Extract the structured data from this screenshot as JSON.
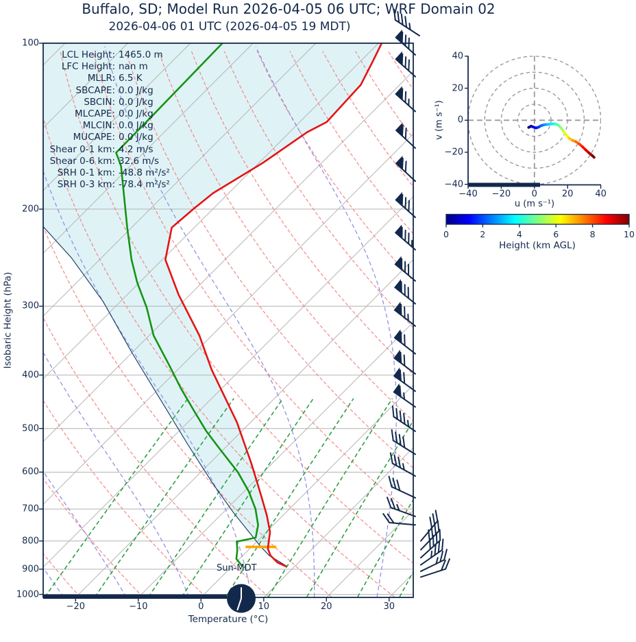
{
  "title": "Buffalo, SD; Model Run 2026-04-05 06 UTC; WRF Domain 02",
  "subtitle": "2026-04-06 01 UTC  (2026-04-05 19 MDT)",
  "skewt": {
    "xlabel": "Temperature (°C)",
    "ylabel": "Isobaric Height (hPa)",
    "pressure_ticks": [
      100,
      200,
      300,
      400,
      500,
      600,
      700,
      800,
      900,
      1000
    ],
    "temp_ticks": [
      -20,
      -10,
      0,
      10,
      20,
      30
    ],
    "sun_label": "Sun-MDT",
    "stats": [
      {
        "label": "LCL Height:",
        "value": "1465.0 m"
      },
      {
        "label": "LFC Height:",
        "value": "nan m"
      },
      {
        "label": "MLLR:",
        "value": "6.5 K"
      },
      {
        "label": "SBCAPE:",
        "value": "0.0 J/kg"
      },
      {
        "label": "SBCIN:",
        "value": "0.0 J/kg"
      },
      {
        "label": "MLCAPE:",
        "value": "0.0 J/kg"
      },
      {
        "label": "MLCIN:",
        "value": "0.0 J/kg"
      },
      {
        "label": "MUCAPE:",
        "value": "0.0 J/kg"
      },
      {
        "label": "Shear 0-1 km:",
        "value": "4.2 m/s"
      },
      {
        "label": "Shear 0-6 km:",
        "value": "32.6 m/s"
      },
      {
        "label": "SRH 0-1 km:",
        "value": "-48.8 m²/s²"
      },
      {
        "label": "SRH 0-3 km:",
        "value": "-78.4 m²/s²"
      }
    ]
  },
  "hodograph": {
    "xlabel": "u (m s⁻¹)",
    "ylabel": "v (m s⁻¹)",
    "ticks": [
      -40,
      -20,
      0,
      20,
      40
    ],
    "ring_radii": [
      10,
      20,
      30,
      40
    ]
  },
  "colorbar": {
    "label": "Height (km AGL)",
    "ticks": [
      0,
      2,
      4,
      6,
      8,
      10
    ],
    "min": 0,
    "max": 10,
    "colormap": "jet"
  },
  "colors": {
    "navy": "#13294b",
    "temperature": "#e31414",
    "dewpoint": "#149414",
    "parcel": "#16355e",
    "cin_shade": "#dff3f6",
    "lcl_marker": "#ffa500",
    "dry_adiabat": "#f48484",
    "moist_adiabat": "#8a8ce6",
    "mixing_ratio": "#2f9e44",
    "grid": "#b3b3b3"
  },
  "chart_data": [
    {
      "name": "skewt_sounding",
      "type": "line",
      "title": "Buffalo, SD; Model Run 2026-04-05 06 UTC; WRF Domain 02",
      "valid": "2026-04-06 01 UTC (2026-04-05 19 MDT)",
      "xlabel": "Temperature (°C)",
      "ylabel": "Isobaric Height (hPa)",
      "x_ticks_C": [
        -20,
        -10,
        0,
        10,
        20,
        30
      ],
      "pressure_ticks_hPa": [
        100,
        200,
        300,
        400,
        500,
        600,
        700,
        800,
        900,
        1000
      ],
      "pressure_range_hPa": [
        100,
        1011
      ],
      "skew_deg": 45,
      "series": [
        {
          "name": "temperature",
          "pressure_hPa": [
            100,
            108,
            119,
            131,
            139,
            145,
            165,
            187,
            200,
            216,
            247,
            286,
            339,
            391,
            488,
            580,
            661,
            720,
            771,
            802,
            826,
            850,
            875,
            890
          ],
          "values_C": [
            -59.5,
            -58.0,
            -56.2,
            -55.9,
            -55.7,
            -57.2,
            -59.4,
            -62.5,
            -63.1,
            -63.6,
            -59.5,
            -51.8,
            -42.0,
            -34.6,
            -22.1,
            -13.2,
            -6.7,
            -2.5,
            0.6,
            1.9,
            2.9,
            4.4,
            6.6,
            8.7
          ]
        },
        {
          "name": "dewpoint",
          "pressure_hPa": [
            100,
            136,
            158,
            167,
            216,
            247,
            272,
            302,
            339,
            383,
            423,
            464,
            506,
            546,
            600,
            650,
            700,
            749,
            789,
            802,
            830,
            862,
            890
          ],
          "values_C": [
            -84.9,
            -84.5,
            -84.4,
            -81.5,
            -70.7,
            -64.9,
            -60.3,
            -54.8,
            -49.3,
            -42.2,
            -36.5,
            -30.9,
            -25.6,
            -20.5,
            -14.1,
            -9.3,
            -5.4,
            -2.4,
            -0.8,
            -3.2,
            -1.8,
            -0.5,
            1.7
          ]
        },
        {
          "name": "parcel",
          "pressure_hPa": [
            889,
            850,
            820,
            768,
            711,
            629,
            537,
            446,
            365,
            294,
            245,
            215
          ],
          "values_C": [
            8.7,
            4.2,
            1.5,
            -3.0,
            -8.3,
            -16.3,
            -26.2,
            -37.6,
            -49.9,
            -62.8,
            -74.8,
            -84.3
          ]
        }
      ],
      "lcl_marker": {
        "pressure_hPa": 820,
        "temp_C": 1.5
      },
      "wind_barbs": [
        {
          "p": 105,
          "pennants": 1,
          "full": 3,
          "half": 0,
          "rot": -48,
          "flip": false
        },
        {
          "p": 115,
          "pennants": 1,
          "full": 3,
          "half": 0,
          "rot": -48,
          "flip": false
        },
        {
          "p": 133,
          "pennants": 1,
          "full": 2,
          "half": 1,
          "rot": -48,
          "flip": false
        },
        {
          "p": 155,
          "pennants": 1,
          "full": 2,
          "half": 0,
          "rot": -47,
          "flip": false
        },
        {
          "p": 178,
          "pennants": 1,
          "full": 2,
          "half": 0,
          "rot": -47,
          "flip": false
        },
        {
          "p": 207,
          "pennants": 1,
          "full": 3,
          "half": 0,
          "rot": -48,
          "flip": false
        },
        {
          "p": 237,
          "pennants": 1,
          "full": 3,
          "half": 1,
          "rot": -49,
          "flip": false
        },
        {
          "p": 270,
          "pennants": 1,
          "full": 3,
          "half": 0,
          "rot": -50,
          "flip": false
        },
        {
          "p": 297,
          "pennants": 1,
          "full": 3,
          "half": 0,
          "rot": -51,
          "flip": false
        },
        {
          "p": 326,
          "pennants": 1,
          "full": 2,
          "half": 1,
          "rot": -52,
          "flip": false
        },
        {
          "p": 366,
          "pennants": 1,
          "full": 2,
          "half": 0,
          "rot": -52,
          "flip": false
        },
        {
          "p": 398,
          "pennants": 1,
          "full": 2,
          "half": 0,
          "rot": -53,
          "flip": false
        },
        {
          "p": 428,
          "pennants": 1,
          "full": 2,
          "half": 0,
          "rot": -54,
          "flip": false
        },
        {
          "p": 457,
          "pennants": 1,
          "full": 1,
          "half": 1,
          "rot": -55,
          "flip": false
        },
        {
          "p": 506,
          "pennants": 0,
          "full": 4,
          "half": 1,
          "rot": -56,
          "flip": false
        },
        {
          "p": 557,
          "pennants": 0,
          "full": 4,
          "half": 0,
          "rot": -58,
          "flip": false
        },
        {
          "p": 610,
          "pennants": 0,
          "full": 3,
          "half": 1,
          "rot": -61,
          "flip": false
        },
        {
          "p": 668,
          "pennants": 0,
          "full": 3,
          "half": 0,
          "rot": -65,
          "flip": false
        },
        {
          "p": 722,
          "pennants": 0,
          "full": 2,
          "half": 1,
          "rot": -70,
          "flip": false
        },
        {
          "p": 748,
          "pennants": 0,
          "full": 2,
          "half": 0,
          "rot": -85,
          "flip": false
        },
        {
          "p": 800,
          "pennants": 0,
          "full": 3,
          "half": 0,
          "rot": 40,
          "flip": true
        },
        {
          "p": 830,
          "pennants": 0,
          "full": 4,
          "half": 0,
          "rot": 44,
          "flip": true
        },
        {
          "p": 858,
          "pennants": 0,
          "full": 4,
          "half": 0,
          "rot": 48,
          "flip": true
        },
        {
          "p": 884,
          "pennants": 0,
          "full": 3,
          "half": 1,
          "rot": 55,
          "flip": true
        },
        {
          "p": 908,
          "pennants": 0,
          "full": 2,
          "half": 1,
          "rot": 64,
          "flip": true
        },
        {
          "p": 930,
          "pennants": 0,
          "full": 2,
          "half": 0,
          "rot": 72,
          "flip": true
        }
      ],
      "header_barb": {
        "full": 4,
        "half": 1,
        "rot": -57
      },
      "surface_bar_temp_span_C": [
        -25.2,
        3.8
      ],
      "sun_annotation": "Sun-MDT"
    },
    {
      "name": "hodograph",
      "type": "line",
      "xlabel": "u (m s⁻¹)",
      "ylabel": "v (m s⁻¹)",
      "xlim": [
        -40,
        40
      ],
      "ylim": [
        -40,
        40
      ],
      "ticks": [
        -40,
        -20,
        0,
        20,
        40
      ],
      "rings": [
        10,
        20,
        30,
        40
      ],
      "u": [
        -3.5,
        -2.0,
        -0.5,
        1.0,
        2.5,
        4.0,
        6.0,
        8.0,
        10.0,
        12.0,
        13.5,
        15.0,
        16.5,
        18.0,
        19.5,
        21.0,
        23.0,
        25.0,
        27.0,
        29.0,
        31.0,
        33.0,
        34.8,
        36.0
      ],
      "v": [
        -4.5,
        -3.7,
        -4.3,
        -4.8,
        -4.3,
        -3.4,
        -2.8,
        -2.6,
        -2.4,
        -2.2,
        -2.6,
        -3.6,
        -5.4,
        -7.6,
        -9.6,
        -11.3,
        -12.6,
        -13.4,
        -14.8,
        -16.6,
        -18.6,
        -20.5,
        -22.0,
        -23.2
      ],
      "color_by": "height_km",
      "height_range_km": [
        0,
        10
      ],
      "ground_bar_u_span": [
        -40,
        3.5
      ]
    }
  ]
}
